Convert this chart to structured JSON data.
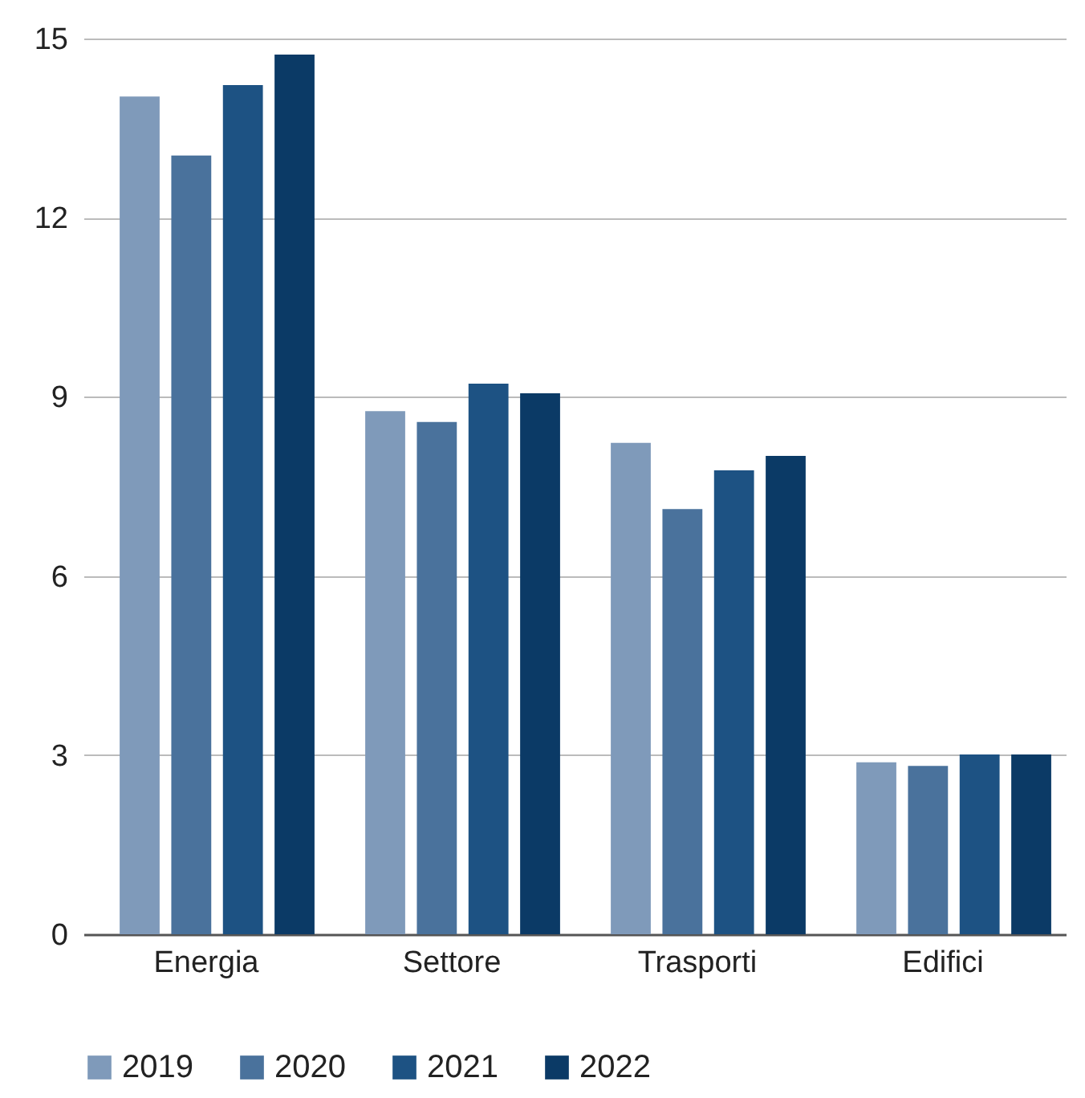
{
  "chart_data": {
    "type": "bar",
    "categories": [
      "Energia",
      "Settore",
      "Trasporti",
      "Edifici"
    ],
    "series": [
      {
        "name": "2019",
        "color": "#7f9aba",
        "values": [
          14.03,
          8.76,
          8.23,
          2.88
        ]
      },
      {
        "name": "2020",
        "color": "#4a729c",
        "values": [
          13.04,
          8.58,
          7.12,
          2.82
        ]
      },
      {
        "name": "2021",
        "color": "#1d5283",
        "values": [
          14.22,
          9.22,
          7.77,
          3.01
        ]
      },
      {
        "name": "2022",
        "color": "#0b3a66",
        "values": [
          14.73,
          9.06,
          8.01,
          3.01
        ]
      }
    ],
    "ylim": [
      0,
      15
    ],
    "yticks": [
      0,
      3,
      6,
      9,
      12,
      15
    ],
    "grid": "y",
    "legend": "bottom"
  }
}
